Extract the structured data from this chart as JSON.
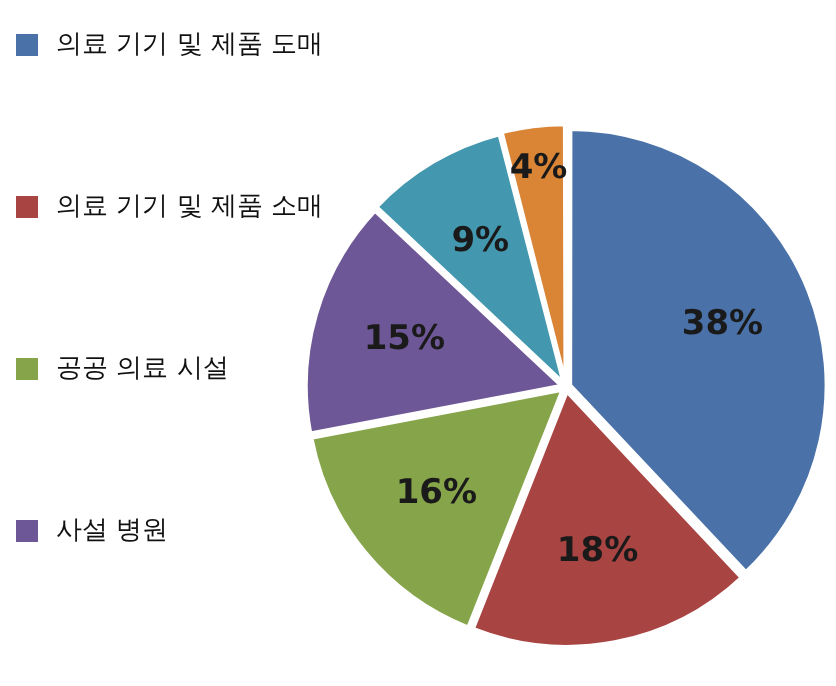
{
  "chart_data": {
    "type": "pie",
    "categories": [
      "의료 기기 및 제품 도매",
      "의료 기기 및 제품 소매",
      "공공 의료 시설",
      "사설 병원",
      null,
      null
    ],
    "values": [
      38,
      18,
      16,
      15,
      9,
      4
    ],
    "colors": [
      "#4a72a8",
      "#a84442",
      "#86a44a",
      "#6e5796",
      "#4397ae",
      "#da8436"
    ],
    "value_labels": [
      "38%",
      "18%",
      "16%",
      "15%",
      "9%",
      "4%"
    ],
    "legend": "left"
  }
}
